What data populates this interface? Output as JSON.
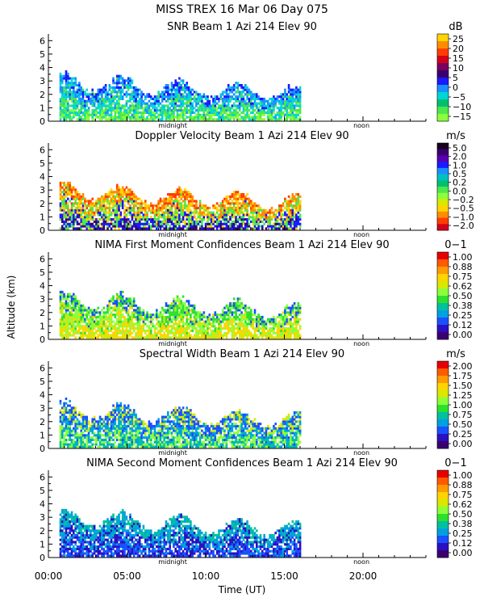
{
  "header": {
    "title": "MISS TREX  16 Mar 06 Day 075"
  },
  "axes": {
    "ylabel": "Altitude (km)",
    "xlabel": "Time (UT)",
    "x_ticks": [
      "00:00",
      "05:00",
      "10:00",
      "15:00",
      "20:00"
    ],
    "y_ticks": [
      "0",
      "1",
      "2",
      "3",
      "4",
      "5",
      "6"
    ],
    "midnight_label": "midnight",
    "noon_label": "noon"
  },
  "chart_data": [
    {
      "type": "heatmap",
      "title": "SNR Beam 1 Azi 214 Elev 90",
      "unit": "dB",
      "xlim": [
        0,
        24
      ],
      "ylim": [
        0,
        6.5
      ],
      "colorbar_ticks": [
        "25",
        "20",
        "15",
        "10",
        "5",
        "0",
        "−5",
        "−10",
        "−15"
      ],
      "colorbar_colors": [
        "#ffd400",
        "#ff8c00",
        "#ff3d00",
        "#d4001a",
        "#7a0060",
        "#3a0070",
        "#1a1aff",
        "#1a90ff",
        "#00d6d6",
        "#00c070",
        "#4ce84c",
        "#8cff3c"
      ],
      "data_extent": {
        "time_start": 0.7,
        "time_end": 16.0,
        "alt_max": 3.5
      },
      "dominant_colors": [
        "#8cff3c",
        "#4ce84c",
        "#00d6d6",
        "#1a90ff",
        "#1a1aff"
      ]
    },
    {
      "type": "heatmap",
      "title": "Doppler Velocity Beam 1 Azi 214 Elev 90",
      "unit": "m/s",
      "xlim": [
        0,
        24
      ],
      "ylim": [
        0,
        6.5
      ],
      "colorbar_ticks": [
        "5.0",
        "2.0",
        "1.0",
        "0.5",
        "0.2",
        "0.0",
        "−0.2",
        "−0.5",
        "−1.0",
        "−2.0"
      ],
      "colorbar_colors": [
        "#1a0020",
        "#3a0070",
        "#5a00b0",
        "#1a1aff",
        "#1a90ff",
        "#00c0c0",
        "#00c070",
        "#4ce84c",
        "#8cff3c",
        "#d8e800",
        "#ffd400",
        "#ff8c00",
        "#ff3d00",
        "#d4001a"
      ],
      "data_extent": {
        "time_start": 0.7,
        "time_end": 16.0,
        "alt_max": 3.5
      },
      "dominant_colors": [
        "#3a0070",
        "#1a1aff",
        "#4ce84c",
        "#ffd400",
        "#ff8c00",
        "#ff3d00"
      ]
    },
    {
      "type": "heatmap",
      "title": "NIMA First Moment Confidences Beam 1 Azi 214 Elev 90",
      "unit": "0−1",
      "xlim": [
        0,
        24
      ],
      "ylim": [
        0,
        6.5
      ],
      "colorbar_ticks": [
        "1.00",
        "0.88",
        "0.75",
        "0.62",
        "0.50",
        "0.38",
        "0.25",
        "0.12",
        "0.00"
      ],
      "colorbar_colors": [
        "#e60000",
        "#ff5a00",
        "#ff9a00",
        "#ffd400",
        "#d8e800",
        "#8cff3c",
        "#2ee02e",
        "#00c0a0",
        "#00a0e0",
        "#1a50ff",
        "#2a10c0",
        "#3a0070"
      ],
      "data_extent": {
        "time_start": 0.7,
        "time_end": 16.0,
        "alt_max": 3.5
      },
      "dominant_colors": [
        "#d8e800",
        "#ffd400",
        "#8cff3c",
        "#2ee02e",
        "#1a50ff"
      ]
    },
    {
      "type": "heatmap",
      "title": "Spectral Width Beam 1 Azi 214 Elev 90",
      "unit": "m/s",
      "xlim": [
        0,
        24
      ],
      "ylim": [
        0,
        6.5
      ],
      "colorbar_ticks": [
        "2.00",
        "1.75",
        "1.50",
        "1.25",
        "1.00",
        "0.75",
        "0.50",
        "0.25",
        "0.00"
      ],
      "colorbar_colors": [
        "#e60000",
        "#ff5a00",
        "#ff9a00",
        "#ffd400",
        "#d8e800",
        "#8cff3c",
        "#2ee02e",
        "#00c0a0",
        "#00a0e0",
        "#1a50ff",
        "#2a10c0",
        "#3a0070"
      ],
      "data_extent": {
        "time_start": 0.7,
        "time_end": 16.0,
        "alt_max": 3.5
      },
      "dominant_colors": [
        "#00c0a0",
        "#8cff3c",
        "#00a0e0",
        "#1a50ff",
        "#d8e800"
      ]
    },
    {
      "type": "heatmap",
      "title": "NIMA Second Moment Confidences Beam 1 Azi 214 Elev 90",
      "unit": "0−1",
      "xlim": [
        0,
        24
      ],
      "ylim": [
        0,
        6.5
      ],
      "colorbar_ticks": [
        "1.00",
        "0.88",
        "0.75",
        "0.62",
        "0.50",
        "0.38",
        "0.25",
        "0.12",
        "0.00"
      ],
      "colorbar_colors": [
        "#e60000",
        "#ff5a00",
        "#ff9a00",
        "#ffd400",
        "#d8e800",
        "#8cff3c",
        "#2ee02e",
        "#00c0a0",
        "#00a0e0",
        "#1a50ff",
        "#2a10c0",
        "#3a0070"
      ],
      "data_extent": {
        "time_start": 0.7,
        "time_end": 16.0,
        "alt_max": 3.5
      },
      "dominant_colors": [
        "#1a50ff",
        "#2a10c0",
        "#00a0e0",
        "#00c0a0"
      ]
    }
  ]
}
